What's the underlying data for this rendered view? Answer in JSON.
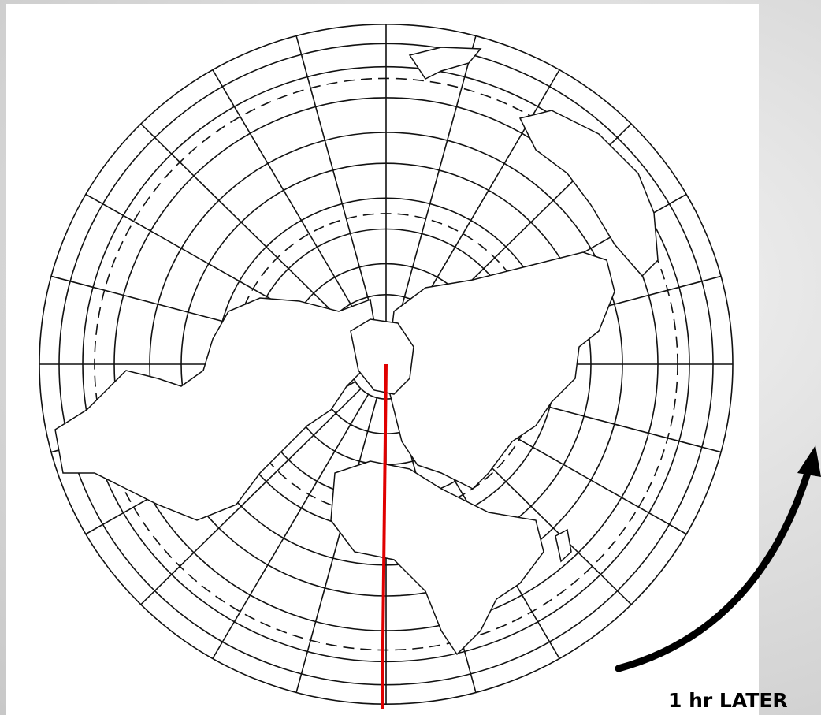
{
  "caption": "1 hr LATER"
}
